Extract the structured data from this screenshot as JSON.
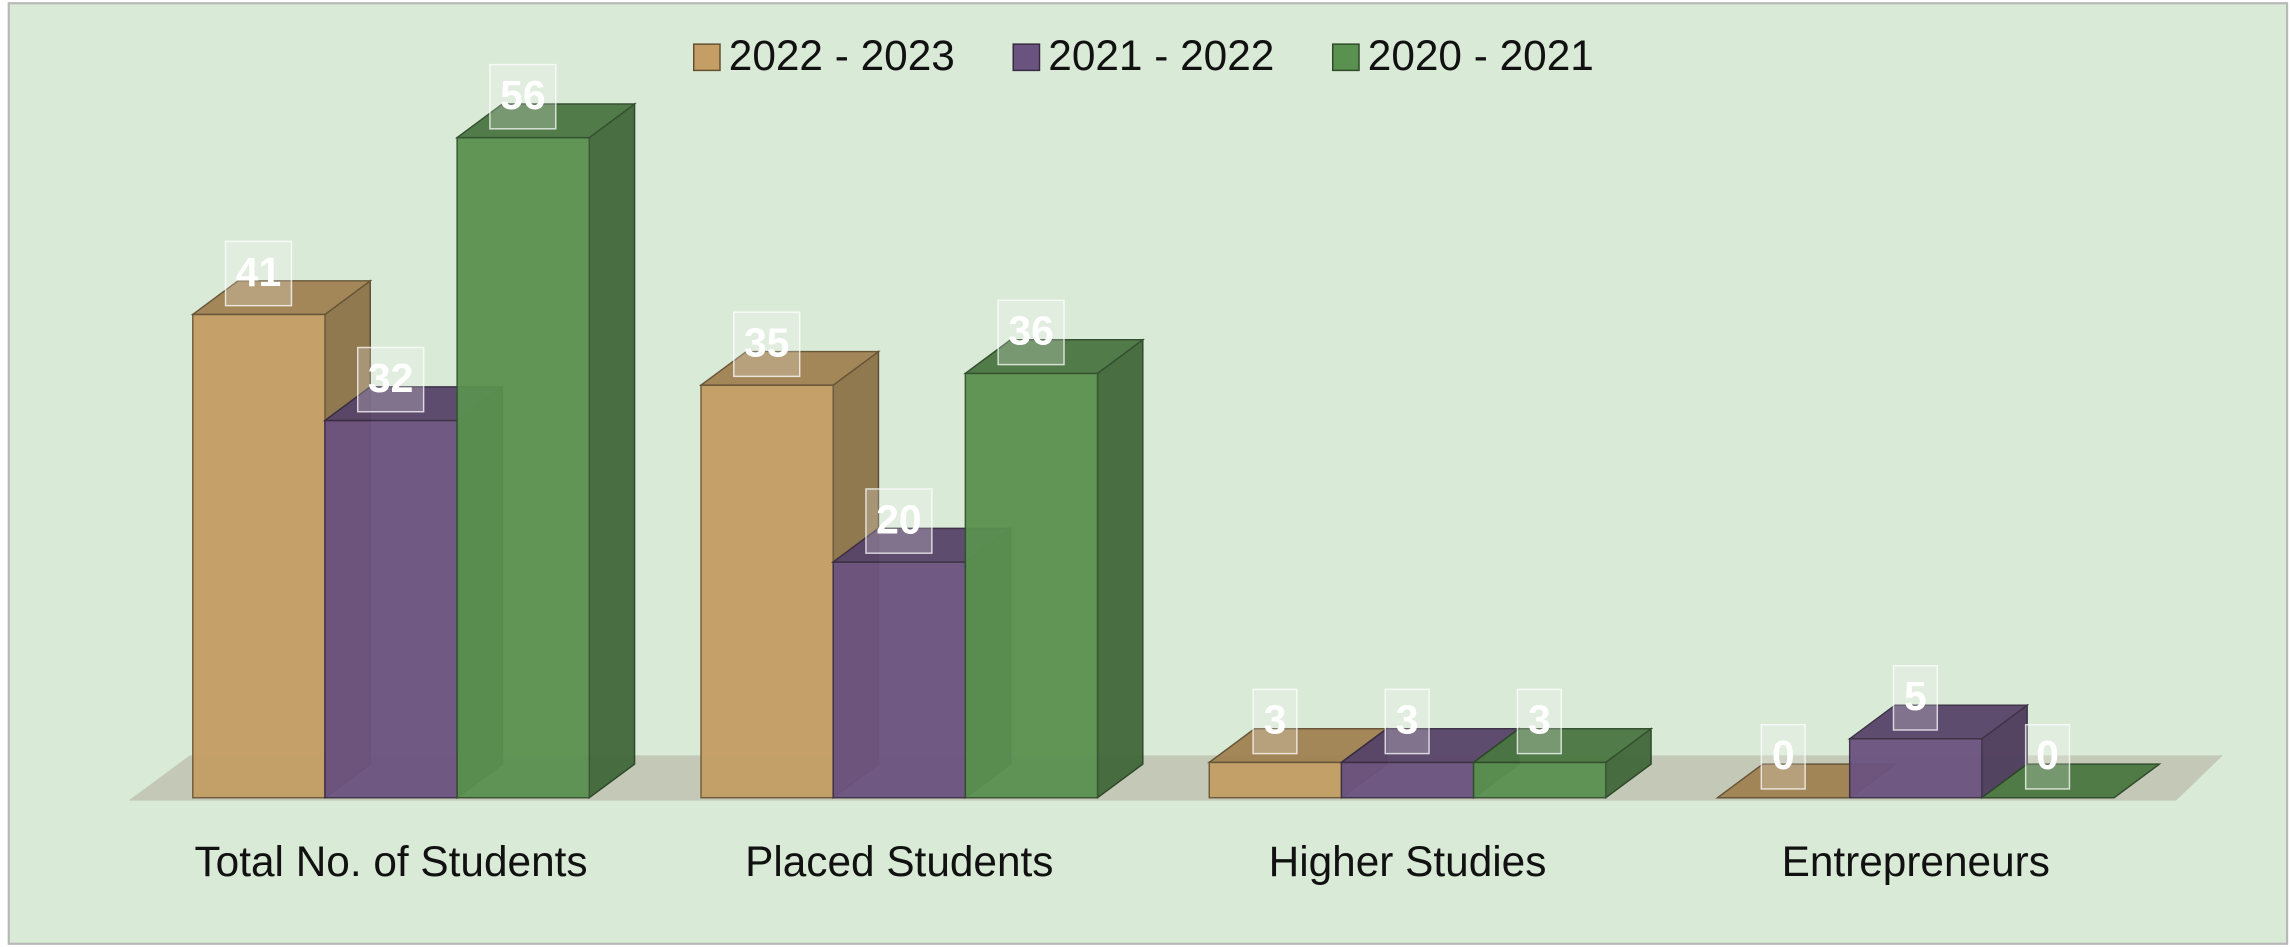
{
  "chart_data": {
    "type": "bar3d",
    "categories": [
      "Total No. of Students",
      "Placed Students",
      "Higher Studies",
      "Entrepreneurs"
    ],
    "series": [
      {
        "name": "2022 - 2023",
        "color": "#c49e64",
        "values": [
          41,
          35,
          3,
          0
        ]
      },
      {
        "name": "2021 - 2022",
        "color": "#6b5380",
        "values": [
          32,
          20,
          3,
          5
        ]
      },
      {
        "name": "2020 - 2021",
        "color": "#5a9150",
        "values": [
          56,
          36,
          3,
          0
        ]
      }
    ],
    "legend": "top"
  }
}
